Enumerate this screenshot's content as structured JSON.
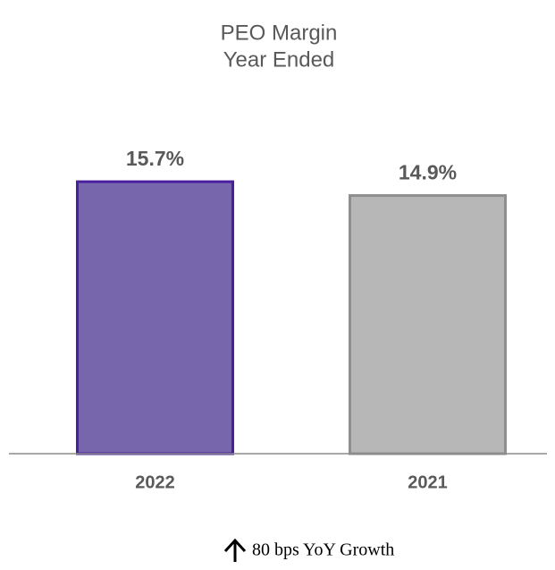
{
  "chart_data": {
    "type": "bar",
    "title": "PEO Margin",
    "subtitle": "Year Ended",
    "categories": [
      "2022",
      "2021"
    ],
    "values": [
      15.7,
      14.9
    ],
    "value_labels": [
      "15.7%",
      "14.9%"
    ],
    "colors": [
      "#7766ab",
      "#b7b7b7"
    ],
    "edge_colors": [
      "#4a1f9e",
      "#8f8f8f"
    ],
    "annotation": "80 bps YoY Growth"
  }
}
